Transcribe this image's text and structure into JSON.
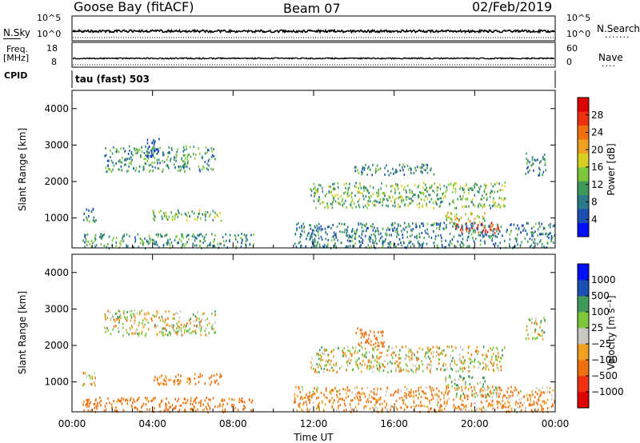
{
  "header": {
    "site": "Goose Bay (fitACF)",
    "beam": "Beam 07",
    "date": "02/Feb/2019"
  },
  "params": {
    "nsky_label": "N.Sky",
    "nsky_ticks": [
      "10^5",
      "10^0"
    ],
    "nsearch_label": "N.Search",
    "nsearch_ticks": [
      "10^5",
      "10^0"
    ],
    "freq_label_line1": "Freq.",
    "freq_label_line2": "[MHz]",
    "freq_ticks": [
      "18",
      "8"
    ],
    "nave_label": "Nave",
    "nave_ticks": [
      "60",
      "0"
    ],
    "cpid_label": "CPID",
    "cpid_value": "tau (fast) 503"
  },
  "colorbars": {
    "power": {
      "label": "Power [dB]",
      "ticks": [
        "28",
        "24",
        "20",
        "16",
        "12",
        "8",
        "4"
      ],
      "colors": [
        "#0010ff",
        "#1a4fb4",
        "#2a7a8a",
        "#3f9a5a",
        "#7cc83a",
        "#d8d020",
        "#f0a020",
        "#f07010",
        "#f03010",
        "#e00000"
      ]
    },
    "velocity": {
      "label": "Velocity [m s⁻¹]",
      "ticks": [
        "1000",
        "500",
        "100",
        "25",
        "−25",
        "−100",
        "−500",
        "−1000"
      ],
      "colors": [
        "#e00000",
        "#f03010",
        "#f07010",
        "#f0a020",
        "#c8c8c0",
        "#7cc83a",
        "#3f9a5a",
        "#1a4fb4",
        "#0010ff"
      ]
    }
  },
  "chart_data": [
    {
      "type": "heatmap",
      "name": "power",
      "ylabel": "Slant Range [km]",
      "ylim": [
        180,
        4500
      ],
      "yticks": [
        1000,
        2000,
        3000,
        4000
      ],
      "xlim": [
        0,
        24
      ],
      "xticks": [
        "00:00",
        "04:00",
        "08:00",
        "12:00",
        "16:00",
        "20:00",
        "00:00"
      ],
      "grid": false,
      "regions": [
        {
          "t": [
            1.6,
            7.1
          ],
          "r": [
            2300,
            3000
          ],
          "value": 10
        },
        {
          "t": [
            3.6,
            4.4
          ],
          "r": [
            2700,
            3200
          ],
          "value": 6
        },
        {
          "t": [
            0.5,
            1.2
          ],
          "r": [
            900,
            1300
          ],
          "value": 8
        },
        {
          "t": [
            4.0,
            7.4
          ],
          "r": [
            950,
            1250
          ],
          "value": 12
        },
        {
          "t": [
            0.5,
            9.0
          ],
          "r": [
            200,
            600
          ],
          "value": 10
        },
        {
          "t": [
            11.8,
            21.5
          ],
          "r": [
            1300,
            2000
          ],
          "value": 12
        },
        {
          "t": [
            14.0,
            18.0
          ],
          "r": [
            2200,
            2500
          ],
          "value": 8
        },
        {
          "t": [
            19.0,
            21.2
          ],
          "r": [
            600,
            900
          ],
          "value": 27
        },
        {
          "t": [
            18.5,
            20.5
          ],
          "r": [
            900,
            1200
          ],
          "value": 16
        },
        {
          "t": [
            22.5,
            23.5
          ],
          "r": [
            2200,
            2800
          ],
          "value": 8
        },
        {
          "t": [
            11.0,
            24.0
          ],
          "r": [
            200,
            900
          ],
          "value": 8
        }
      ]
    },
    {
      "type": "heatmap",
      "name": "velocity",
      "ylabel": "Slant Range [km]",
      "xlabel": "Time UT",
      "ylim": [
        180,
        4500
      ],
      "yticks": [
        1000,
        2000,
        3000,
        4000
      ],
      "xlim": [
        0,
        24
      ],
      "xticks": [
        "00:00",
        "04:00",
        "08:00",
        "12:00",
        "16:00",
        "20:00",
        "00:00"
      ],
      "grid": false,
      "regions": [
        {
          "t": [
            1.6,
            7.1
          ],
          "r": [
            2300,
            3000
          ],
          "value": 0
        },
        {
          "t": [
            0.5,
            1.2
          ],
          "r": [
            900,
            1300
          ],
          "value": -50
        },
        {
          "t": [
            4.0,
            7.4
          ],
          "r": [
            950,
            1250
          ],
          "value": -150
        },
        {
          "t": [
            0.5,
            9.0
          ],
          "r": [
            200,
            600
          ],
          "value": -200
        },
        {
          "t": [
            11.8,
            21.5
          ],
          "r": [
            1300,
            2000
          ],
          "value": 0
        },
        {
          "t": [
            14.0,
            15.5
          ],
          "r": [
            2000,
            2500
          ],
          "value": -300
        },
        {
          "t": [
            19.0,
            21.2
          ],
          "r": [
            600,
            900
          ],
          "value": 80
        },
        {
          "t": [
            18.5,
            20.5
          ],
          "r": [
            900,
            1200
          ],
          "value": 60
        },
        {
          "t": [
            22.5,
            23.5
          ],
          "r": [
            2200,
            2800
          ],
          "value": 0
        },
        {
          "t": [
            11.0,
            24.0
          ],
          "r": [
            200,
            900
          ],
          "value": -100
        }
      ]
    }
  ]
}
